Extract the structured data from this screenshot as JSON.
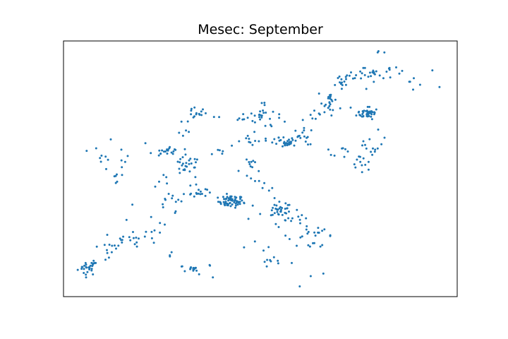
{
  "chart_data": {
    "type": "scatter",
    "title": "Mesec: September",
    "xlabel": "",
    "ylabel": "",
    "xlim": [
      0,
      1
    ],
    "ylim": [
      0,
      1
    ],
    "x_ticks_visible": false,
    "y_ticks_visible": false,
    "grid": false,
    "point_color": "#1f77b4",
    "clusters": [
      {
        "x": 0.061,
        "y": 0.112,
        "spread": [
          0.012,
          0.014
        ],
        "n": 24
      },
      {
        "x": 0.078,
        "y": 0.128,
        "spread": [
          0.004,
          0.006
        ],
        "n": 6
      },
      {
        "x": 0.425,
        "y": 0.372,
        "spread": [
          0.016,
          0.012
        ],
        "n": 60
      },
      {
        "x": 0.55,
        "y": 0.335,
        "spread": [
          0.012,
          0.011
        ],
        "n": 26
      },
      {
        "x": 0.555,
        "y": 0.601,
        "spread": [
          0.018,
          0.008
        ],
        "n": 22
      },
      {
        "x": 0.774,
        "y": 0.717,
        "spread": [
          0.014,
          0.01
        ],
        "n": 30
      },
      {
        "x": 0.677,
        "y": 0.771,
        "spread": [
          0.008,
          0.02
        ],
        "n": 16
      },
      {
        "x": 0.257,
        "y": 0.57,
        "spread": [
          0.01,
          0.005
        ],
        "n": 10
      },
      {
        "x": 0.504,
        "y": 0.712,
        "spread": [
          0.008,
          0.02
        ],
        "n": 10
      },
      {
        "x": 0.312,
        "y": 0.511,
        "spread": [
          0.012,
          0.014
        ],
        "n": 10
      },
      {
        "x": 0.344,
        "y": 0.41,
        "spread": [
          0.01,
          0.01
        ],
        "n": 10
      },
      {
        "x": 0.332,
        "y": 0.107,
        "spread": [
          0.012,
          0.006
        ],
        "n": 9
      },
      {
        "x": 0.609,
        "y": 0.633,
        "spread": [
          0.01,
          0.01
        ],
        "n": 10
      },
      {
        "x": 0.646,
        "y": 0.26,
        "spread": [
          0.01,
          0.01
        ],
        "n": 8
      },
      {
        "x": 0.8,
        "y": 0.86,
        "spread": [
          0.03,
          0.014
        ],
        "n": 14
      },
      {
        "x": 0.714,
        "y": 0.856,
        "spread": [
          0.016,
          0.012
        ],
        "n": 8
      },
      {
        "x": 0.479,
        "y": 0.521,
        "spread": [
          0.008,
          0.012
        ],
        "n": 8
      },
      {
        "x": 0.136,
        "y": 0.476,
        "spread": [
          0.008,
          0.012
        ],
        "n": 6
      },
      {
        "x": 0.768,
        "y": 0.55,
        "spread": [
          0.01,
          0.03
        ],
        "n": 10
      }
    ],
    "paths": [
      {
        "points": [
          [
            0.085,
            0.16
          ],
          [
            0.215,
            0.24
          ],
          [
            0.272,
            0.36
          ],
          [
            0.335,
            0.41
          ]
        ],
        "n": 34
      },
      {
        "points": [
          [
            0.34,
            0.4
          ],
          [
            0.285,
            0.58
          ],
          [
            0.315,
            0.71
          ],
          [
            0.36,
            0.72
          ],
          [
            0.46,
            0.68
          ],
          [
            0.53,
            0.73
          ],
          [
            0.555,
            0.62
          ]
        ],
        "n": 60
      },
      {
        "points": [
          [
            0.455,
            0.352
          ],
          [
            0.57,
            0.24
          ],
          [
            0.636,
            0.2
          ],
          [
            0.665,
            0.24
          ]
        ],
        "n": 18
      },
      {
        "points": [
          [
            0.555,
            0.6
          ],
          [
            0.62,
            0.7
          ],
          [
            0.68,
            0.75
          ],
          [
            0.79,
            0.72
          ]
        ],
        "n": 30
      },
      {
        "points": [
          [
            0.69,
            0.78
          ],
          [
            0.72,
            0.87
          ],
          [
            0.8,
            0.88
          ],
          [
            0.86,
            0.88
          ],
          [
            0.91,
            0.83
          ]
        ],
        "n": 30
      },
      {
        "points": [
          [
            0.455,
            0.2
          ],
          [
            0.5,
            0.16
          ],
          [
            0.54,
            0.15
          ],
          [
            0.56,
            0.1
          ]
        ],
        "n": 12
      },
      {
        "points": [
          [
            0.255,
            0.18
          ],
          [
            0.3,
            0.11
          ],
          [
            0.39,
            0.09
          ]
        ],
        "n": 12
      },
      {
        "points": [
          [
            0.065,
            0.58
          ],
          [
            0.13,
            0.52
          ],
          [
            0.24,
            0.55
          ],
          [
            0.3,
            0.58
          ]
        ],
        "n": 18
      },
      {
        "points": [
          [
            0.46,
            0.52
          ],
          [
            0.5,
            0.4
          ],
          [
            0.58,
            0.35
          ],
          [
            0.62,
            0.26
          ]
        ],
        "n": 22
      },
      {
        "points": [
          [
            0.24,
            0.44
          ],
          [
            0.32,
            0.53
          ],
          [
            0.44,
            0.6
          ],
          [
            0.51,
            0.61
          ]
        ],
        "n": 30
      },
      {
        "points": [
          [
            0.09,
            0.24
          ],
          [
            0.18,
            0.21
          ],
          [
            0.25,
            0.3
          ],
          [
            0.28,
            0.44
          ]
        ],
        "n": 18
      },
      {
        "points": [
          [
            0.77,
            0.73
          ],
          [
            0.8,
            0.6
          ],
          [
            0.76,
            0.52
          ],
          [
            0.73,
            0.54
          ]
        ],
        "n": 18
      },
      {
        "points": [
          [
            0.6,
            0.6
          ],
          [
            0.68,
            0.55
          ],
          [
            0.74,
            0.56
          ]
        ],
        "n": 12
      },
      {
        "points": [
          [
            0.49,
            0.2
          ],
          [
            0.56,
            0.3
          ],
          [
            0.62,
            0.32
          ]
        ],
        "n": 10
      }
    ],
    "isolated_points": [
      [
        0.8,
        0.96
      ],
      [
        0.798,
        0.955
      ],
      [
        0.815,
        0.955
      ],
      [
        0.955,
        0.82
      ],
      [
        0.937,
        0.885
      ],
      [
        0.6,
        0.04
      ],
      [
        0.628,
        0.08
      ],
      [
        0.66,
        0.09
      ],
      [
        0.083,
        0.58
      ],
      [
        0.147,
        0.575
      ],
      [
        0.12,
        0.615
      ],
      [
        0.163,
        0.55
      ],
      [
        0.208,
        0.6
      ],
      [
        0.233,
        0.43
      ],
      [
        0.175,
        0.36
      ],
      [
        0.13,
        0.2
      ],
      [
        0.16,
        0.3
      ]
    ]
  }
}
